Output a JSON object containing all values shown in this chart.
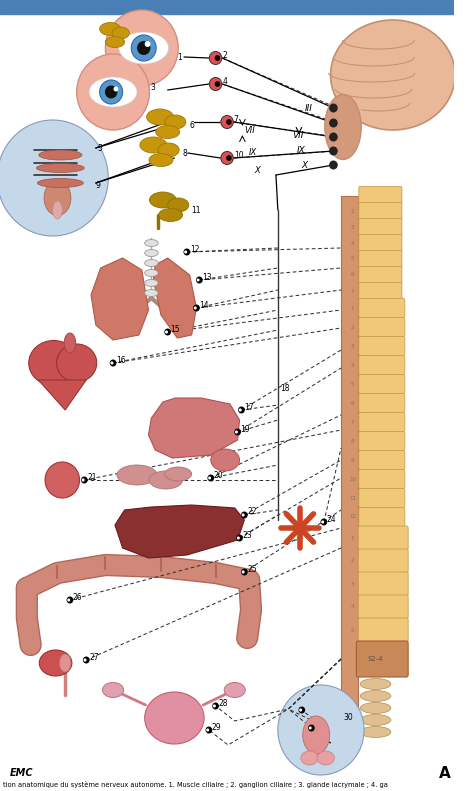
{
  "caption": "tion anatomique du système nerveux autonome. 1. Muscle ciliaire ; 2. ganglion ciliaire ; 3. glande lacrymale ; 4. ga",
  "bg_color": "#ffffff",
  "fig_width": 4.74,
  "fig_height": 7.91,
  "label_A": "A",
  "label_EMC": "EMC",
  "header_bg": "#4a7fb5",
  "ganglion_color": "#e05050",
  "ganglion_edge": "#333333",
  "spine_color": "#d4956a",
  "vertebra_color": "#f0c878",
  "vertebra_edge": "#c8a050",
  "brain_color": "#e8b898",
  "brain_edge": "#c09070",
  "brainstem_color": "#d4987a",
  "gland_color": "#c8960a",
  "gland_dark": "#a07808",
  "nerve_lw": 0.9,
  "dashed_lw": 0.75,
  "organ_pink": "#d8706a",
  "organ_dark_pink": "#c05050",
  "heart_color": "#c85050",
  "stomach_color": "#d07878",
  "liver_color": "#8B3030",
  "colon_color": "#d08878",
  "kidney_color": "#cc5050",
  "bladder_color": "#e09898",
  "vessel_color": "#cc4422",
  "eye_blue": "#5599cc",
  "nasal_bg": "#c5d8ea",
  "node_r": 3.5
}
